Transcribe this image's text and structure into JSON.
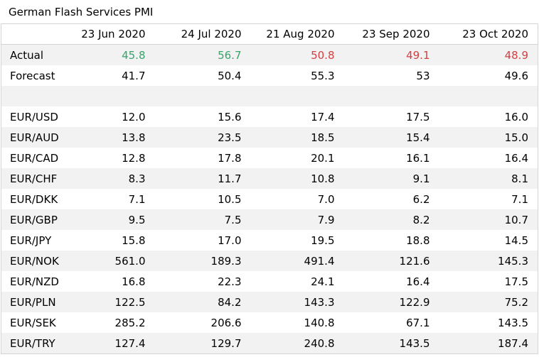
{
  "title": "German Flash Services PMI",
  "colors": {
    "positive": "#3aa36b",
    "negative": "#d23f42",
    "row_shade": "#f2f2f2"
  },
  "table": {
    "columns": [
      "",
      "23 Jun 2020",
      "24 Jul 2020",
      "21 Aug 2020",
      "23 Sep 2020",
      "23 Oct 2020"
    ],
    "rows": [
      {
        "label": "Actual",
        "values": [
          "45.8",
          "56.7",
          "50.8",
          "49.1",
          "48.9"
        ],
        "colors": [
          "positive",
          "positive",
          "negative",
          "negative",
          "negative"
        ]
      },
      {
        "label": "Forecast",
        "values": [
          "41.7",
          "50.4",
          "55.3",
          "53",
          "49.6"
        ]
      },
      {
        "label": "",
        "values": [
          "",
          "",
          "",
          "",
          ""
        ]
      },
      {
        "label": "EUR/USD",
        "values": [
          "12.0",
          "15.6",
          "17.4",
          "17.5",
          "16.0"
        ]
      },
      {
        "label": "EUR/AUD",
        "values": [
          "13.8",
          "23.5",
          "18.5",
          "15.4",
          "15.0"
        ]
      },
      {
        "label": "EUR/CAD",
        "values": [
          "12.8",
          "17.8",
          "20.1",
          "16.1",
          "16.4"
        ]
      },
      {
        "label": "EUR/CHF",
        "values": [
          "8.3",
          "11.7",
          "10.8",
          "9.1",
          "8.1"
        ]
      },
      {
        "label": "EUR/DKK",
        "values": [
          "7.1",
          "10.5",
          "7.0",
          "6.2",
          "7.1"
        ]
      },
      {
        "label": "EUR/GBP",
        "values": [
          "9.5",
          "7.5",
          "7.9",
          "8.2",
          "10.7"
        ]
      },
      {
        "label": "EUR/JPY",
        "values": [
          "15.8",
          "17.0",
          "19.5",
          "18.8",
          "14.5"
        ]
      },
      {
        "label": "EUR/NOK",
        "values": [
          "561.0",
          "189.3",
          "491.4",
          "121.6",
          "145.3"
        ]
      },
      {
        "label": "EUR/NZD",
        "values": [
          "16.8",
          "22.3",
          "24.1",
          "16.4",
          "17.5"
        ]
      },
      {
        "label": "EUR/PLN",
        "values": [
          "122.5",
          "84.2",
          "143.3",
          "122.9",
          "75.2"
        ]
      },
      {
        "label": "EUR/SEK",
        "values": [
          "285.2",
          "206.6",
          "140.8",
          "67.1",
          "143.5"
        ]
      },
      {
        "label": "EUR/TRY",
        "values": [
          "127.4",
          "129.7",
          "240.8",
          "143.5",
          "187.4"
        ]
      }
    ]
  }
}
